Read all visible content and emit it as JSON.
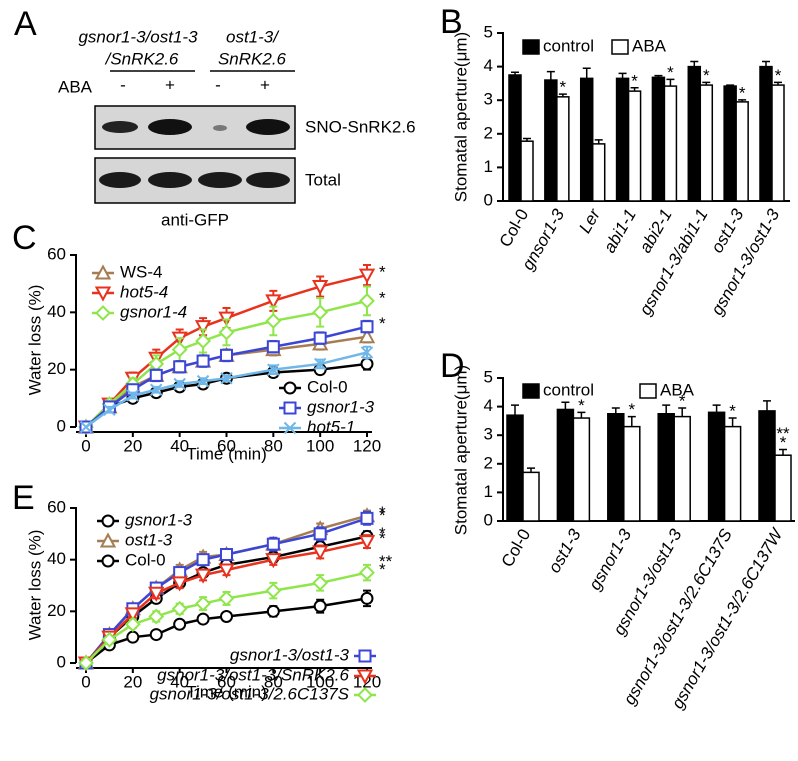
{
  "panels": [
    "A",
    "B",
    "C",
    "D",
    "E"
  ],
  "blot": {
    "group_labels": [
      [
        "gsnor1-3/ost1-3",
        "/SnRK2.6"
      ],
      [
        "ost1-3/",
        "SnRK2.6"
      ]
    ],
    "treatment_label": "ABA",
    "lanes": [
      "-",
      "+",
      "-",
      "+"
    ],
    "bands": [
      "SNO-SnRK2.6",
      "Total"
    ],
    "antibody": "anti-GFP"
  },
  "chart_data": [
    {
      "type": "bar",
      "y_label": "Stomatal aperture(μm)",
      "categories": [
        "Col-0",
        "gnsor1-3",
        "Ler",
        "abi1-1",
        "abi2-1",
        "gsnor1-3/abi1-1",
        "ost1-3",
        "gsnor1-3/ost1-3"
      ],
      "italic_categories": [
        false,
        true,
        true,
        true,
        true,
        true,
        true,
        true
      ],
      "series": [
        {
          "name": "control",
          "color": "#000000",
          "values": [
            3.75,
            3.6,
            3.65,
            3.65,
            3.68,
            4.0,
            3.42,
            4.0
          ],
          "errors": [
            0.08,
            0.25,
            0.3,
            0.15,
            0.05,
            0.15,
            0.03,
            0.15
          ]
        },
        {
          "name": "ABA",
          "color": "#ffffff",
          "values": [
            1.78,
            3.1,
            1.7,
            3.27,
            3.42,
            3.45,
            2.95,
            3.45
          ],
          "errors": [
            0.08,
            0.08,
            0.12,
            0.1,
            0.2,
            0.08,
            0.06,
            0.08
          ]
        }
      ],
      "significance": [
        [],
        [
          "*"
        ],
        [],
        [
          "*"
        ],
        [
          "*"
        ],
        [
          "*"
        ],
        [
          "*"
        ],
        [
          "*"
        ]
      ],
      "ylim": [
        0,
        5
      ],
      "yticks": [
        0,
        1,
        2,
        3,
        4,
        5
      ]
    },
    {
      "type": "line",
      "x_label": "Time (min)",
      "y_label": "Water loss (%)",
      "x": [
        0,
        10,
        20,
        30,
        40,
        50,
        60,
        80,
        100,
        120
      ],
      "series": [
        {
          "name": "WS-4",
          "italic": false,
          "color": "#a67c52",
          "marker": "triangle-up",
          "values": [
            0,
            7,
            14,
            18,
            21,
            23,
            25,
            27,
            29,
            31.5
          ],
          "errors": [
            0,
            1,
            1.5,
            1.5,
            2,
            2,
            2,
            2,
            2,
            2
          ],
          "significance": []
        },
        {
          "name": "hot5-4",
          "italic": true,
          "color": "#e8321e",
          "marker": "triangle-down",
          "values": [
            0,
            8,
            17,
            24,
            31,
            35,
            38,
            44,
            49,
            53
          ],
          "errors": [
            0,
            1,
            2,
            3,
            3,
            3,
            3.5,
            3.5,
            3.5,
            3.5
          ],
          "significance": [
            "*"
          ]
        },
        {
          "name": "gsnor1-4",
          "italic": true,
          "color": "#8ee64a",
          "marker": "diamond",
          "values": [
            0,
            8,
            15,
            22,
            27,
            30,
            33,
            37,
            40,
            44
          ],
          "errors": [
            0,
            1,
            2,
            3,
            4,
            4,
            4.5,
            5,
            5,
            5
          ],
          "significance": [
            "*"
          ]
        },
        {
          "name": "Col-0",
          "italic": false,
          "color": "#000000",
          "marker": "circle",
          "values": [
            0,
            7,
            10,
            12,
            14,
            15,
            17,
            19,
            20,
            22
          ],
          "errors": [
            0,
            1,
            1,
            1,
            1,
            1,
            1,
            1.5,
            1.5,
            2
          ],
          "significance": []
        },
        {
          "name": "gsnor1-3",
          "italic": true,
          "color": "#3b45d6",
          "marker": "square",
          "values": [
            0,
            7,
            13,
            18,
            21,
            23,
            25,
            28,
            31,
            35
          ],
          "errors": [
            0,
            1,
            1.5,
            2,
            2,
            2,
            2,
            2,
            2,
            2
          ],
          "significance": [
            "*"
          ]
        },
        {
          "name": "hot5-1",
          "italic": true,
          "color": "#6fb7e8",
          "marker": "x",
          "values": [
            0,
            6,
            11,
            13,
            15,
            16,
            17,
            20,
            22,
            26
          ],
          "errors": [
            0,
            1,
            1,
            1,
            1,
            1,
            1,
            1.5,
            1.5,
            2
          ],
          "significance": []
        }
      ],
      "xlim": [
        0,
        120
      ],
      "xticks": [
        0,
        20,
        40,
        60,
        80,
        100,
        120
      ],
      "ylim": [
        0,
        60
      ],
      "yticks": [
        0,
        20,
        40,
        60
      ]
    },
    {
      "type": "bar",
      "y_label": "Stomatal aperture(μm)",
      "categories": [
        "Col-0",
        "ost1-3",
        "gsnor1-3",
        "gsnor1-3/ost1-3",
        "gsnor1-3/ost1-3/2.6C137S",
        "gsnor1-3/ost1-3/2.6C137W"
      ],
      "italic_categories": [
        false,
        true,
        true,
        true,
        true,
        true
      ],
      "series": [
        {
          "name": "control",
          "color": "#000000",
          "values": [
            3.7,
            3.9,
            3.75,
            3.75,
            3.8,
            3.85
          ],
          "errors": [
            0.35,
            0.25,
            0.2,
            0.3,
            0.25,
            0.35
          ]
        },
        {
          "name": "ABA",
          "color": "#ffffff",
          "values": [
            1.7,
            3.6,
            3.3,
            3.65,
            3.3,
            2.3
          ],
          "errors": [
            0.15,
            0.2,
            0.35,
            0.3,
            0.3,
            0.2
          ]
        }
      ],
      "significance": [
        [],
        [
          "*"
        ],
        [
          "*"
        ],
        [
          "*"
        ],
        [
          "*"
        ],
        [
          "**",
          "*"
        ]
      ],
      "ylim": [
        0,
        5
      ],
      "yticks": [
        0,
        1,
        2,
        3,
        4,
        5
      ]
    },
    {
      "type": "line",
      "x_label": "Time (min)",
      "y_label": "Water loss (%)",
      "x": [
        0,
        10,
        20,
        30,
        40,
        50,
        60,
        80,
        100,
        120
      ],
      "series": [
        {
          "name": "gsnor1-3",
          "italic": true,
          "color": "#000000",
          "marker": "circle",
          "values": [
            0,
            10,
            18,
            25,
            31,
            35,
            38,
            41,
            45,
            49
          ],
          "errors": [
            0,
            1,
            1,
            1.5,
            1.5,
            1.5,
            1.5,
            2,
            2,
            2
          ],
          "significance": [
            "*"
          ]
        },
        {
          "name": "ost1-3",
          "italic": true,
          "color": "#a67c52",
          "marker": "triangle-up",
          "values": [
            0,
            11,
            21,
            29,
            36,
            41,
            42,
            46,
            52,
            57
          ],
          "errors": [
            0,
            1,
            1.5,
            2,
            2,
            2,
            2,
            2,
            2,
            2
          ],
          "significance": [
            "*"
          ]
        },
        {
          "name": "Col-0",
          "italic": false,
          "color": "#000000",
          "marker": "circle",
          "values": [
            0,
            7,
            10,
            11,
            15,
            17,
            18,
            20,
            22,
            25
          ],
          "errors": [
            0,
            1,
            1,
            1,
            1,
            1,
            1,
            2,
            2.5,
            3
          ],
          "significance": []
        },
        {
          "name": "gsnor1-3/ost1-3",
          "italic": true,
          "color": "#3b45d6",
          "marker": "square",
          "values": [
            0,
            11,
            21,
            29,
            35,
            40,
            42,
            46,
            50,
            56
          ],
          "errors": [
            0,
            1,
            1.5,
            2,
            2,
            2,
            2,
            2.5,
            2.5,
            2.5
          ],
          "significance": [
            "*"
          ]
        },
        {
          "name": "gsnor1-3/ost1-3/SnRK2.6",
          "italic": true,
          "color": "#e8321e",
          "marker": "triangle-down",
          "values": [
            0,
            10,
            19,
            27,
            31,
            34,
            36,
            40,
            43,
            47
          ],
          "errors": [
            0,
            1,
            1.5,
            2,
            2,
            2,
            2,
            2,
            2.5,
            2.5
          ],
          "significance": [
            "*"
          ]
        },
        {
          "name": "gsnor1-3/ost1-3/2.6C137S",
          "italic": true,
          "color": "#8ee64a",
          "marker": "diamond",
          "values": [
            0,
            9,
            15,
            18,
            21,
            23,
            25,
            28,
            31,
            35
          ],
          "errors": [
            0,
            1,
            1.5,
            2,
            2,
            2.5,
            2.5,
            3,
            3,
            3
          ],
          "significance": [
            "**",
            "*"
          ]
        }
      ],
      "xlim": [
        0,
        120
      ],
      "xticks": [
        0,
        20,
        40,
        60,
        80,
        100,
        120
      ],
      "ylim": [
        0,
        60
      ],
      "yticks": [
        0,
        20,
        40,
        60
      ]
    }
  ]
}
